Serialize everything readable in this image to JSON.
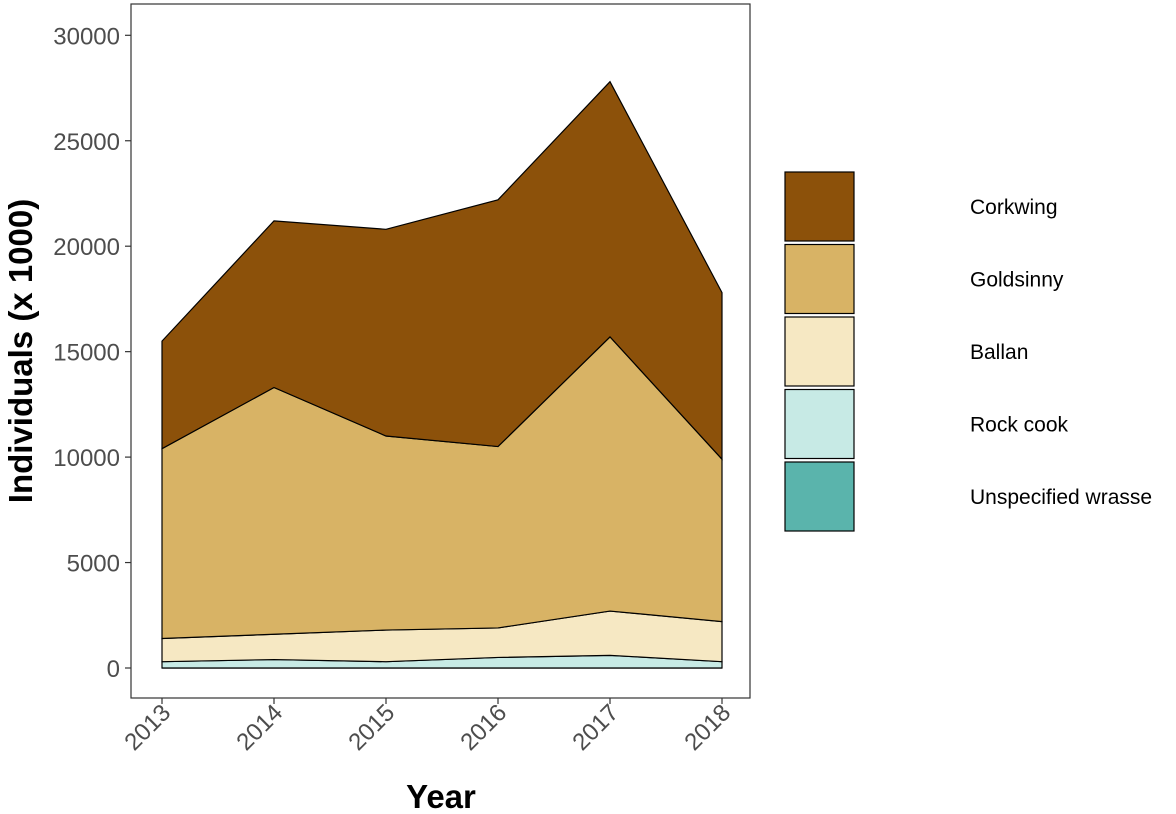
{
  "chart_data": {
    "type": "area",
    "stacked": true,
    "title": "",
    "xlabel": "Year",
    "ylabel": "Individuals (x 1000)",
    "x": [
      2013,
      2014,
      2015,
      2016,
      2017,
      2018
    ],
    "x_tick_labels": [
      "2013",
      "2014",
      "2015",
      "2016",
      "2017",
      "2018"
    ],
    "y_ticks": [
      0,
      5000,
      10000,
      15000,
      20000,
      25000,
      30000
    ],
    "y_tick_labels": [
      "0",
      "5000",
      "10000",
      "15000",
      "20000",
      "25000",
      "30000"
    ],
    "ylim": [
      -1500,
      31500
    ],
    "grid": false,
    "legend_position": "right",
    "series": [
      {
        "name": "Unspecified wrasse",
        "color": "#5ab4ac",
        "values": [
          0,
          0,
          0,
          0,
          0,
          0
        ]
      },
      {
        "name": "Rock cook",
        "color": "#c7eae5",
        "values": [
          300,
          400,
          300,
          500,
          600,
          300
        ]
      },
      {
        "name": "Ballan",
        "color": "#f6e8c3",
        "values": [
          1100,
          1200,
          1500,
          1400,
          2100,
          1900
        ]
      },
      {
        "name": "Goldsinny",
        "color": "#d8b365",
        "values": [
          9000,
          11700,
          9200,
          8600,
          13000,
          7700
        ]
      },
      {
        "name": "Corkwing",
        "color": "#8c510a",
        "values": [
          5100,
          7900,
          9800,
          11700,
          12100,
          7900
        ]
      }
    ]
  }
}
